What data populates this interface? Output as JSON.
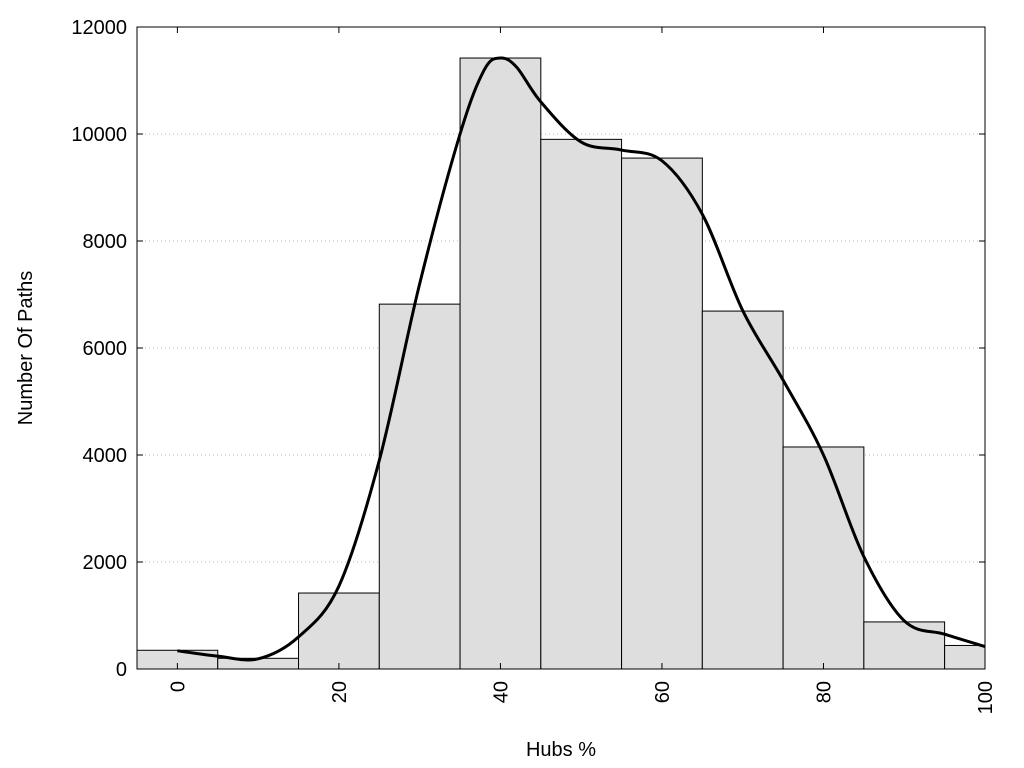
{
  "chart_data": {
    "type": "bar",
    "title": "",
    "xlabel": "Hubs %",
    "ylabel": "Number Of Paths",
    "xlim": [
      -5,
      100
    ],
    "ylim": [
      0,
      12000
    ],
    "x_ticks": [
      0,
      20,
      40,
      60,
      80,
      100
    ],
    "y_ticks": [
      0,
      2000,
      4000,
      6000,
      8000,
      10000,
      12000
    ],
    "grid": "horizontal dotted",
    "legend": "none",
    "bar_width": 10,
    "bar_color": "#dedede",
    "bars": [
      {
        "x_start": -5,
        "x_end": 5,
        "value": 350
      },
      {
        "x_start": 5,
        "x_end": 15,
        "value": 200
      },
      {
        "x_start": 15,
        "x_end": 25,
        "value": 1420
      },
      {
        "x_start": 25,
        "x_end": 35,
        "value": 6820
      },
      {
        "x_start": 35,
        "x_end": 45,
        "value": 11420
      },
      {
        "x_start": 45,
        "x_end": 55,
        "value": 9900
      },
      {
        "x_start": 55,
        "x_end": 65,
        "value": 9550
      },
      {
        "x_start": 65,
        "x_end": 75,
        "value": 6690
      },
      {
        "x_start": 75,
        "x_end": 85,
        "value": 4150
      },
      {
        "x_start": 85,
        "x_end": 95,
        "value": 880
      },
      {
        "x_start": 95,
        "x_end": 100,
        "value": 440
      }
    ],
    "curve": {
      "type": "line",
      "color": "#000000",
      "x": [
        0,
        5,
        10,
        15,
        20,
        25,
        30,
        35,
        38,
        40,
        42,
        45,
        50,
        55,
        60,
        65,
        70,
        75,
        80,
        85,
        90,
        95,
        100
      ],
      "y": [
        340,
        240,
        190,
        600,
        1550,
        3900,
        7200,
        10000,
        11200,
        11420,
        11250,
        10600,
        9850,
        9700,
        9500,
        8500,
        6700,
        5400,
        4000,
        2100,
        900,
        650,
        420
      ]
    }
  }
}
